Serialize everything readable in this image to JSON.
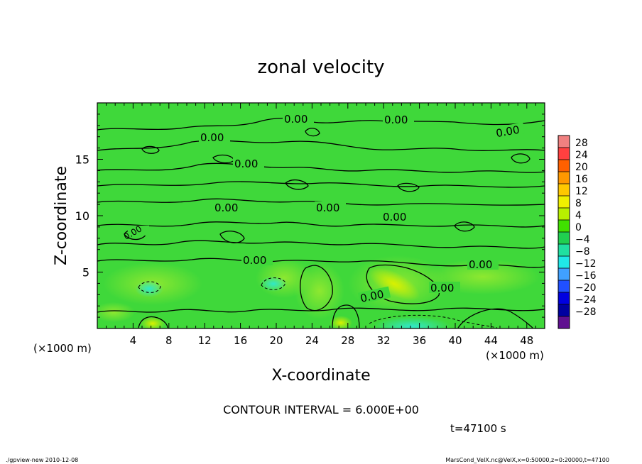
{
  "chart_data": {
    "type": "heatmap",
    "title": "zonal velocity",
    "xlabel": "X-coordinate",
    "ylabel": "Z-coordinate",
    "x_unit_note": "(×1000 m)",
    "x_unit_note_right": "(×1000 m)",
    "x_ticks": [
      4,
      8,
      12,
      16,
      20,
      24,
      28,
      32,
      36,
      40,
      44,
      48
    ],
    "y_ticks": [
      5,
      10,
      15
    ],
    "xlim": [
      0,
      50
    ],
    "ylim": [
      0,
      20
    ],
    "colorbar": {
      "ticks": [
        28,
        24,
        20,
        16,
        12,
        8,
        4,
        0,
        -4,
        -8,
        -12,
        -16,
        -20,
        -24,
        -28
      ],
      "display_labels": [
        "28",
        "24",
        "20",
        "16",
        "12",
        "8",
        "4",
        "0",
        "−4",
        "−8",
        "−12",
        "−16",
        "−20",
        "−24",
        "−28"
      ],
      "colors": [
        "#f08080",
        "#ff4040",
        "#ff6000",
        "#ff9800",
        "#ffc800",
        "#f0f000",
        "#b8f000",
        "#40e000",
        "#20d050",
        "#20e0a0",
        "#20e8e8",
        "#40a0ff",
        "#2050ff",
        "#0000e0",
        "#0000a0",
        "#601090"
      ]
    },
    "contour_labels": [
      "0.00",
      "0.00",
      "0.00",
      "0.00",
      "0.00",
      "0.00",
      "0.00",
      "0.00",
      "0.00",
      "0.00",
      "0.00",
      "0.00",
      "0.00"
    ],
    "contour_interval_text": "CONTOUR INTERVAL = 6.000E+00",
    "time_text": "t=47100 s"
  },
  "footer": {
    "left": "./gpview-new  2010-12-08",
    "right": "MarsCond_VelX.nc@VelX,x=0:50000,z=0:20000,t=47100"
  },
  "colors": {
    "field": "#3fd83a",
    "contour": "#000000"
  }
}
